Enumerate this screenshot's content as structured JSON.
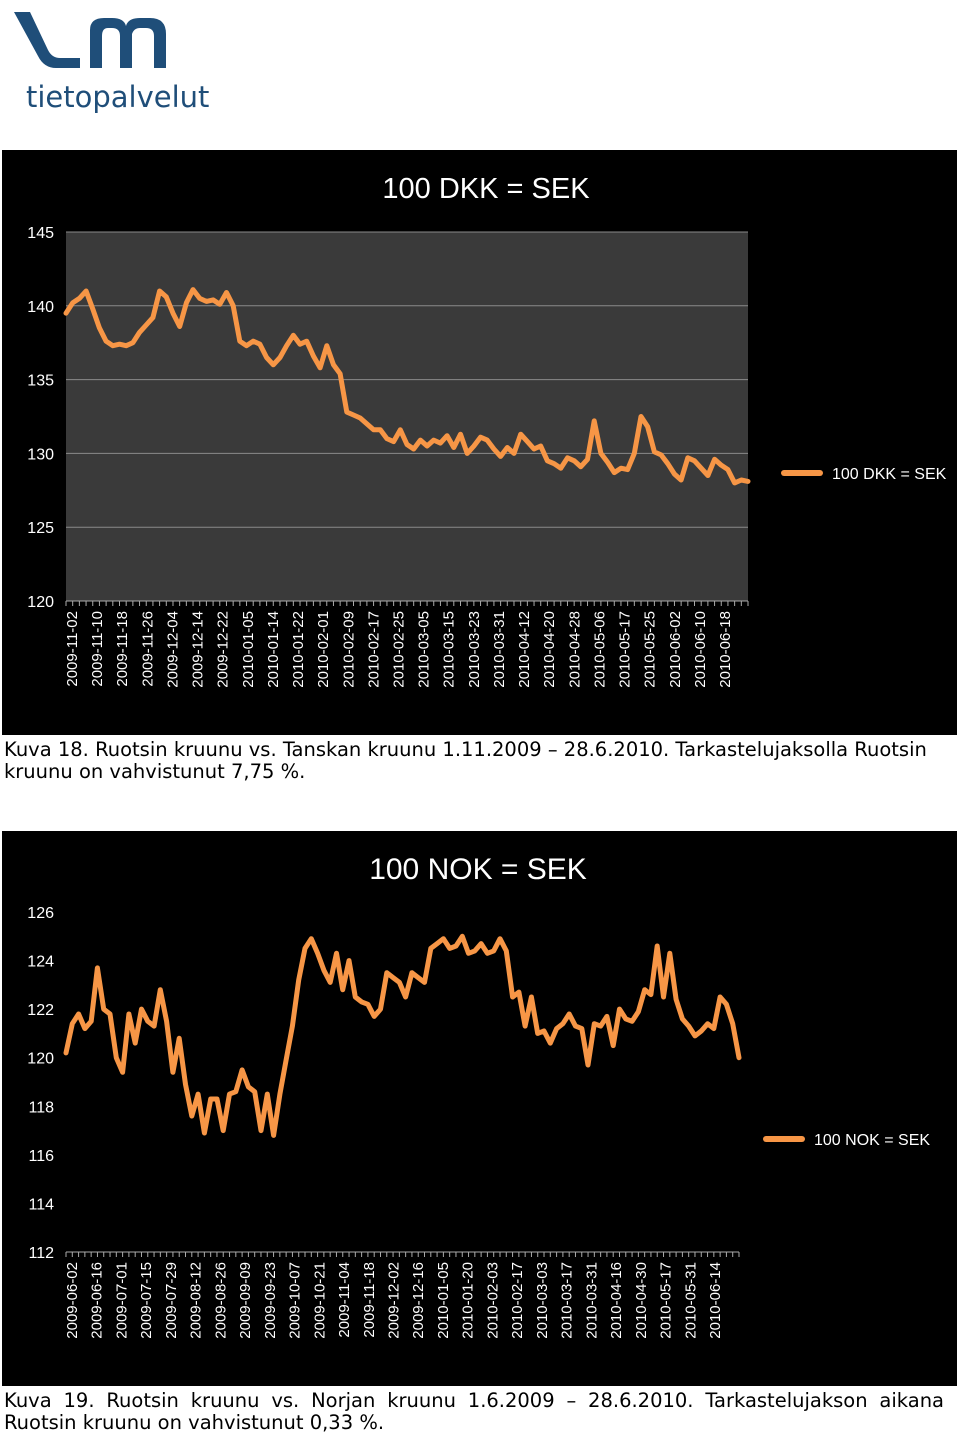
{
  "logo": {
    "text": "tietopalvelut",
    "color": "#1f4e79"
  },
  "charts": [
    {
      "type": "line",
      "title": "100 DKK = SEK",
      "series_name": "100 DKK = SEK",
      "line_color": "#f79646",
      "ylim": [
        120,
        145
      ],
      "yticks": [
        120,
        125,
        130,
        135,
        140,
        145
      ],
      "grid": true,
      "legend": "right",
      "x_labels": [
        "2009-11-02",
        "2009-11-10",
        "2009-11-18",
        "2009-11-26",
        "2009-12-04",
        "2009-12-14",
        "2009-12-22",
        "2010-01-05",
        "2010-01-14",
        "2010-01-22",
        "2010-02-01",
        "2010-02-09",
        "2010-02-17",
        "2010-02-25",
        "2010-03-05",
        "2010-03-15",
        "2010-03-23",
        "2010-03-31",
        "2010-04-12",
        "2010-04-20",
        "2010-04-28",
        "2010-05-06",
        "2010-05-17",
        "2010-05-25",
        "2010-06-02",
        "2010-06-10",
        "2010-06-18"
      ],
      "values": [
        139.5,
        140.2,
        140.5,
        141.0,
        139.8,
        138.5,
        137.6,
        137.3,
        137.4,
        137.3,
        137.5,
        138.2,
        138.7,
        139.2,
        141.0,
        140.6,
        139.5,
        138.6,
        140.2,
        141.1,
        140.5,
        140.3,
        140.4,
        140.1,
        140.9,
        140.0,
        137.6,
        137.3,
        137.6,
        137.4,
        136.5,
        136.0,
        136.5,
        137.3,
        138.0,
        137.4,
        137.6,
        136.6,
        135.8,
        137.3,
        136.0,
        135.4,
        132.8,
        132.6,
        132.4,
        132.0,
        131.6,
        131.6,
        131.0,
        130.8,
        131.6,
        130.6,
        130.3,
        130.9,
        130.5,
        130.9,
        130.7,
        131.2,
        130.4,
        131.3,
        130.0,
        130.5,
        131.1,
        130.9,
        130.3,
        129.8,
        130.4,
        130.0,
        131.3,
        130.8,
        130.3,
        130.5,
        129.5,
        129.3,
        129.0,
        129.7,
        129.5,
        129.1,
        129.6,
        132.2,
        130.0,
        129.4,
        128.7,
        129.0,
        128.9,
        130.0,
        132.5,
        131.8,
        130.1,
        129.9,
        129.3,
        128.6,
        128.2,
        129.7,
        129.5,
        129.0,
        128.5,
        129.6,
        129.2,
        128.9,
        128.0,
        128.2,
        128.1
      ]
    },
    {
      "type": "line",
      "title": "100 NOK = SEK",
      "series_name": "100 NOK = SEK",
      "line_color": "#f79646",
      "ylim": [
        112,
        126
      ],
      "yticks": [
        112,
        114,
        116,
        118,
        120,
        122,
        124,
        126
      ],
      "grid": false,
      "legend": "right",
      "x_labels": [
        "2009-06-02",
        "2009-06-16",
        "2009-07-01",
        "2009-07-15",
        "2009-07-29",
        "2009-08-12",
        "2009-08-26",
        "2009-09-09",
        "2009-09-23",
        "2009-10-07",
        "2009-10-21",
        "2009-11-04",
        "2009-11-18",
        "2009-12-02",
        "2009-12-16",
        "2010-01-05",
        "2010-01-20",
        "2010-02-03",
        "2010-02-17",
        "2010-03-03",
        "2010-03-17",
        "2010-03-31",
        "2010-04-16",
        "2010-04-30",
        "2010-05-17",
        "2010-05-31",
        "2010-06-14"
      ],
      "values": [
        120.2,
        121.4,
        121.8,
        121.2,
        121.5,
        123.7,
        122.0,
        121.8,
        120.0,
        119.4,
        121.8,
        120.6,
        122.0,
        121.5,
        121.3,
        122.8,
        121.5,
        119.4,
        120.8,
        118.9,
        117.6,
        118.5,
        116.9,
        118.3,
        118.3,
        117.0,
        118.5,
        118.6,
        119.5,
        118.8,
        118.6,
        117.0,
        118.5,
        116.8,
        118.5,
        119.9,
        121.3,
        123.2,
        124.5,
        124.9,
        124.3,
        123.6,
        123.1,
        124.3,
        122.8,
        124.0,
        122.5,
        122.3,
        122.2,
        121.7,
        122.0,
        123.5,
        123.3,
        123.1,
        122.5,
        123.5,
        123.3,
        123.1,
        124.5,
        124.7,
        124.9,
        124.5,
        124.6,
        125.0,
        124.3,
        124.4,
        124.7,
        124.3,
        124.4,
        124.9,
        124.4,
        122.5,
        122.7,
        121.3,
        122.5,
        121.0,
        121.1,
        120.6,
        121.2,
        121.4,
        121.8,
        121.3,
        121.2,
        119.7,
        121.4,
        121.3,
        121.7,
        120.5,
        122.0,
        121.6,
        121.5,
        121.9,
        122.8,
        122.6,
        124.6,
        122.5,
        124.3,
        122.4,
        121.6,
        121.3,
        120.9,
        121.1,
        121.4,
        121.2,
        122.5,
        122.2,
        121.4,
        120.0
      ]
    }
  ],
  "captions": [
    "Kuva 18. Ruotsin kruunu vs. Tanskan kruunu 1.11.2009 – 28.6.2010. Tarkastelujaksolla Ruotsin kruunu on vahvistunut 7,75 %.",
    "Kuva 19. Ruotsin kruunu vs. Norjan kruunu 1.6.2009 – 28.6.2010. Tarkastelujakson aikana Ruotsin kruunu on vahvistunut 0,33 %."
  ]
}
